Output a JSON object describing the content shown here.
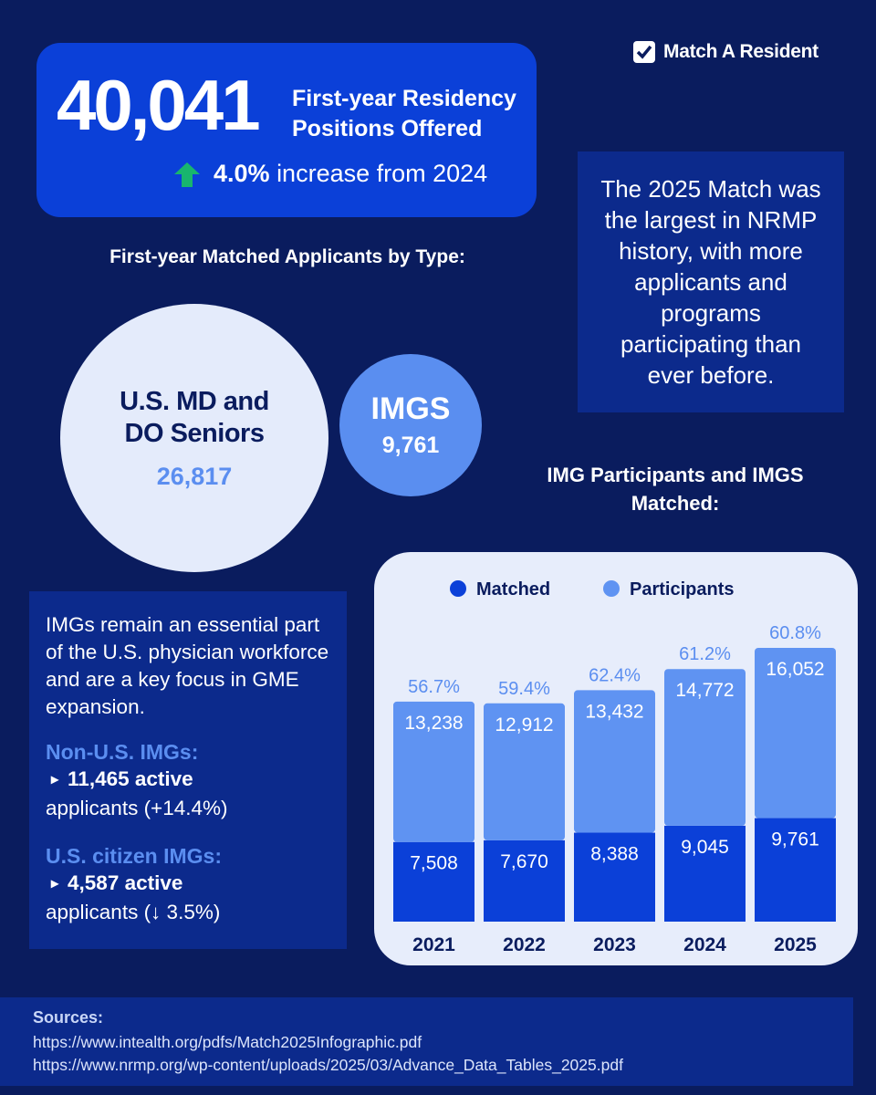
{
  "brand": "Match A Resident",
  "headline": {
    "number": "40,041",
    "label": "First-year Residency Positions Offered",
    "change": "4.0%",
    "change_text": "increase from 2024"
  },
  "match_note": "The 2025 Match was the largest in NRMP history, with more applicants and programs participating than ever before.",
  "types": {
    "title": "First-year Matched Applicants by Type:",
    "groups": [
      {
        "label": "U.S. MD and DO Seniors",
        "value": "26,817"
      },
      {
        "label": "IMGS",
        "value": "9,761"
      }
    ]
  },
  "img_note": {
    "intro": "IMGs remain an essential part of the U.S. physician workforce and are a key focus in GME expansion.",
    "groups": [
      {
        "heading": "Non-U.S. IMGs:",
        "bold": "11,465 active",
        "rest": "applicants (+14.4%)"
      },
      {
        "heading": "U.S. citizen IMGs:",
        "bold": "4,587 active",
        "rest": "applicants (↓ 3.5%)"
      }
    ]
  },
  "chart_data": {
    "type": "bar",
    "stacked": true,
    "title": "IMG Participants and IMGS Matched:",
    "categories": [
      "2021",
      "2022",
      "2023",
      "2024",
      "2025"
    ],
    "series": [
      {
        "name": "Matched",
        "color": "#0b40d8",
        "values": [
          7508,
          7670,
          8388,
          9045,
          9761
        ],
        "value_labels": [
          "7,508",
          "7,670",
          "8,388",
          "9,045",
          "9,761"
        ]
      },
      {
        "name": "Participants",
        "color": "#5f93f2",
        "values": [
          13238,
          12912,
          13432,
          14772,
          16052
        ],
        "value_labels": [
          "13,238",
          "12,912",
          "13,432",
          "14,772",
          "16,052"
        ]
      }
    ],
    "rate_labels": [
      "56.7%",
      "59.4%",
      "62.4%",
      "61.2%",
      "60.8%"
    ]
  },
  "sources": {
    "title": "Sources:",
    "links": [
      "https://www.intealth.org/pdfs/Match2025Infographic.pdf",
      "https://www.nrmp.org/wp-content/uploads/2025/03/Advance_Data_Tables_2025.pdf"
    ]
  }
}
